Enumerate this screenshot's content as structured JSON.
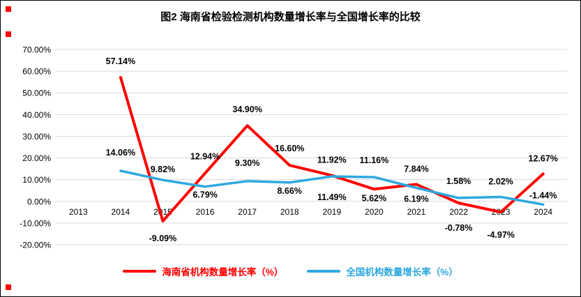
{
  "title": "图2 海南省检验检测机构数量增长率与全国增长率的比较",
  "chart_data": {
    "type": "line",
    "categories": [
      "2013",
      "2014",
      "2015",
      "2016",
      "2017",
      "2018",
      "2019",
      "2020",
      "2021",
      "2022",
      "2023",
      "2024"
    ],
    "series": [
      {
        "name": "海南省机构数量增长率（%）",
        "color": "#ff0000",
        "width": 4,
        "values": [
          null,
          57.14,
          -9.09,
          12.94,
          34.9,
          16.6,
          11.92,
          5.62,
          7.84,
          -0.78,
          -4.97,
          12.67
        ],
        "labels": [
          null,
          "57.14%",
          "-9.09%",
          "12.94%",
          "34.90%",
          "16.60%",
          "11.92%",
          "5.62%",
          "7.84%",
          "-0.78%",
          "-4.97%",
          "12.67%"
        ],
        "label_dy": [
          null,
          -19,
          29,
          -20,
          -19,
          -20,
          -18,
          17,
          -18,
          40,
          37,
          -18
        ]
      },
      {
        "name": "全国机构数量增长率（%）",
        "color": "#2ea8df",
        "width": 3.5,
        "values": [
          null,
          14.06,
          9.82,
          6.79,
          9.3,
          8.66,
          11.49,
          11.16,
          6.19,
          1.58,
          2.02,
          -1.44
        ],
        "labels": [
          null,
          "14.06%",
          "9.82%",
          "6.79%",
          "9.30%",
          "8.66%",
          "11.49%",
          "11.16%",
          "6.19%",
          "1.58%",
          "2.02%",
          "-1.44%"
        ],
        "label_dy": [
          null,
          -22,
          -11,
          16,
          -22,
          16,
          34,
          -20,
          20,
          -20,
          -18,
          -9
        ]
      }
    ],
    "y_ticks": [
      "70.00%",
      "60.00%",
      "50.00%",
      "40.00%",
      "30.00%",
      "20.00%",
      "10.00%",
      "0.00%",
      "-10.00%",
      "-20.00%"
    ],
    "y_tick_values": [
      70,
      60,
      50,
      40,
      30,
      20,
      10,
      0,
      -10,
      -20
    ],
    "ylim": [
      -20,
      70
    ],
    "xlabel": "",
    "ylabel": "",
    "grid": true,
    "legend_position": "bottom"
  },
  "colors": {
    "gridline": "#d9d9d9",
    "selection_handle": "#ff0000"
  }
}
